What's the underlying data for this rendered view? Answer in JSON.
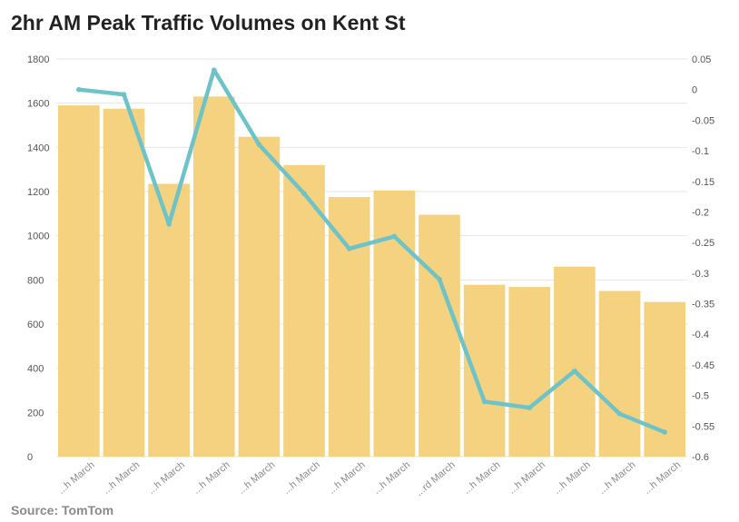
{
  "title": "2hr AM Peak Traffic Volumes on Kent St",
  "source": "Source: TomTom",
  "colors": {
    "bars": "#f4d27f",
    "line": "#6ec3c8",
    "grid": "#e6e6e6",
    "title": "#222222",
    "source": "#8a8a8a"
  },
  "chart_data": {
    "type": "bar",
    "categories": [
      "...h March",
      "...h March",
      "...h March",
      "...h March",
      "...h March",
      "...h March",
      "...h March",
      "...h March",
      "...rd March",
      "...h March",
      "...h March",
      "...h March",
      "...h March",
      "...h March"
    ],
    "series": [
      {
        "type": "bar",
        "axis": "left",
        "values": [
          1590,
          1575,
          1235,
          1630,
          1448,
          1320,
          1175,
          1205,
          1095,
          778,
          768,
          860,
          750,
          700
        ]
      },
      {
        "type": "line",
        "axis": "right",
        "values": [
          0.0,
          -0.008,
          -0.22,
          0.032,
          -0.09,
          -0.17,
          -0.26,
          -0.24,
          -0.31,
          -0.51,
          -0.52,
          -0.46,
          -0.53,
          -0.56
        ]
      }
    ],
    "y_left": {
      "min": 0,
      "max": 1800,
      "ticks": [
        "0",
        "200",
        "400",
        "600",
        "800",
        "1000",
        "1200",
        "1400",
        "1600",
        "1800"
      ]
    },
    "y_right": {
      "min": -0.6,
      "max": 0.05,
      "ticks": [
        "-0.6",
        "-0.55",
        "-0.5",
        "-0.45",
        "-0.4",
        "-0.35",
        "-0.3",
        "-0.25",
        "-0.2",
        "-0.15",
        "-0.1",
        "-0.05",
        "0",
        "0.05"
      ]
    },
    "grid": true
  }
}
